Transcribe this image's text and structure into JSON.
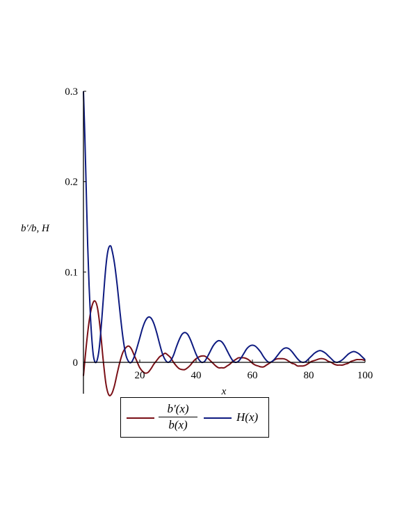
{
  "chart_data": {
    "type": "line",
    "xlabel": "x",
    "ylabel": "b′/b, H",
    "xlim": [
      0,
      100
    ],
    "ylim": [
      -0.035,
      0.3
    ],
    "xticks": [
      "20",
      "40",
      "60",
      "80",
      "100"
    ],
    "yticks": [
      "0",
      "0.1",
      "0.2",
      "0.3"
    ],
    "legend_position": "bottom",
    "grid": false,
    "series": [
      {
        "name": "b′(x)/b(x)",
        "color": "#7a0f16",
        "legend": {
          "numerator": "b′(x)",
          "denominator": "b(x)"
        },
        "x": [
          0,
          1,
          2,
          3,
          4,
          5,
          6,
          7,
          8,
          9,
          10,
          11,
          12,
          13,
          14,
          15,
          16,
          17,
          18,
          19,
          20,
          21,
          22,
          23,
          24,
          25,
          26,
          27,
          28,
          29,
          30,
          31,
          32,
          33,
          34,
          35,
          36,
          37,
          38,
          39,
          40,
          41,
          42,
          43,
          44,
          45,
          46,
          47,
          48,
          49,
          50,
          51,
          52,
          53,
          54,
          55,
          56,
          57,
          58,
          59,
          60,
          61,
          62,
          63,
          64,
          65,
          66,
          67,
          68,
          69,
          70,
          71,
          72,
          73,
          74,
          75,
          76,
          77,
          78,
          79,
          80,
          81,
          82,
          83,
          84,
          85,
          86,
          87,
          88,
          89,
          90,
          91,
          92,
          93,
          94,
          95,
          96,
          97,
          98,
          99,
          100
        ],
        "y": [
          -0.015,
          0.018,
          0.045,
          0.062,
          0.068,
          0.06,
          0.036,
          0.003,
          -0.024,
          -0.036,
          -0.035,
          -0.026,
          -0.012,
          0.001,
          0.011,
          0.016,
          0.018,
          0.015,
          0.008,
          0.001,
          -0.006,
          -0.01,
          -0.012,
          -0.011,
          -0.007,
          -0.002,
          0.002,
          0.006,
          0.008,
          0.01,
          0.008,
          0.005,
          0.0,
          -0.004,
          -0.007,
          -0.008,
          -0.008,
          -0.006,
          -0.003,
          0.001,
          0.004,
          0.006,
          0.007,
          0.007,
          0.005,
          0.002,
          -0.001,
          -0.004,
          -0.006,
          -0.006,
          -0.006,
          -0.004,
          -0.002,
          0.001,
          0.003,
          0.005,
          0.005,
          0.005,
          0.004,
          0.002,
          -0.001,
          -0.003,
          -0.004,
          -0.005,
          -0.005,
          -0.003,
          -0.001,
          0.001,
          0.003,
          0.004,
          0.004,
          0.004,
          0.003,
          0.001,
          -0.001,
          -0.002,
          -0.004,
          -0.004,
          -0.004,
          -0.003,
          -0.001,
          0.001,
          0.002,
          0.003,
          0.004,
          0.004,
          0.003,
          0.001,
          0.0,
          -0.002,
          -0.003,
          -0.003,
          -0.003,
          -0.002,
          -0.001,
          0.001,
          0.002,
          0.003,
          0.003,
          0.003,
          0.002
        ]
      },
      {
        "name": "H(x)",
        "color": "#0d1a80",
        "legend": {
          "label": "H(x)"
        },
        "x": [
          0,
          0.5,
          1,
          1.5,
          2,
          2.5,
          3,
          3.5,
          4,
          4.5,
          5,
          5.5,
          6,
          6.5,
          7,
          7.5,
          8,
          8.5,
          9,
          9.5,
          10,
          11,
          12,
          13,
          14,
          15,
          16,
          17,
          18,
          19,
          20,
          21,
          22,
          23,
          24,
          25,
          26,
          27,
          28,
          29,
          30,
          31,
          32,
          33,
          34,
          35,
          36,
          37,
          38,
          39,
          40,
          41,
          42,
          43,
          44,
          45,
          46,
          47,
          48,
          49,
          50,
          51,
          52,
          53,
          54,
          55,
          56,
          57,
          58,
          59,
          60,
          61,
          62,
          63,
          64,
          65,
          66,
          67,
          68,
          69,
          70,
          71,
          72,
          73,
          74,
          75,
          76,
          77,
          78,
          79,
          80,
          81,
          82,
          83,
          84,
          85,
          86,
          87,
          88,
          89,
          90,
          91,
          92,
          93,
          94,
          95,
          96,
          97,
          98,
          99,
          100
        ],
        "y": [
          0.3,
          0.25,
          0.19,
          0.13,
          0.085,
          0.05,
          0.025,
          0.008,
          0.001,
          0.0,
          0.004,
          0.013,
          0.028,
          0.047,
          0.068,
          0.089,
          0.107,
          0.12,
          0.127,
          0.129,
          0.126,
          0.11,
          0.085,
          0.055,
          0.028,
          0.009,
          0.001,
          0.0,
          0.006,
          0.016,
          0.027,
          0.038,
          0.046,
          0.05,
          0.049,
          0.043,
          0.033,
          0.021,
          0.01,
          0.003,
          0.0,
          0.002,
          0.008,
          0.017,
          0.025,
          0.031,
          0.033,
          0.031,
          0.025,
          0.017,
          0.009,
          0.003,
          0.0,
          0.001,
          0.006,
          0.012,
          0.018,
          0.022,
          0.024,
          0.023,
          0.019,
          0.013,
          0.007,
          0.002,
          0.0,
          0.001,
          0.005,
          0.01,
          0.015,
          0.018,
          0.019,
          0.018,
          0.015,
          0.011,
          0.006,
          0.002,
          0.0,
          0.001,
          0.004,
          0.008,
          0.012,
          0.015,
          0.016,
          0.015,
          0.012,
          0.008,
          0.004,
          0.001,
          0.0,
          0.001,
          0.004,
          0.007,
          0.01,
          0.012,
          0.013,
          0.012,
          0.01,
          0.007,
          0.004,
          0.001,
          0.0,
          0.001,
          0.003,
          0.006,
          0.009,
          0.011,
          0.012,
          0.011,
          0.009,
          0.006,
          0.003
        ]
      }
    ]
  }
}
